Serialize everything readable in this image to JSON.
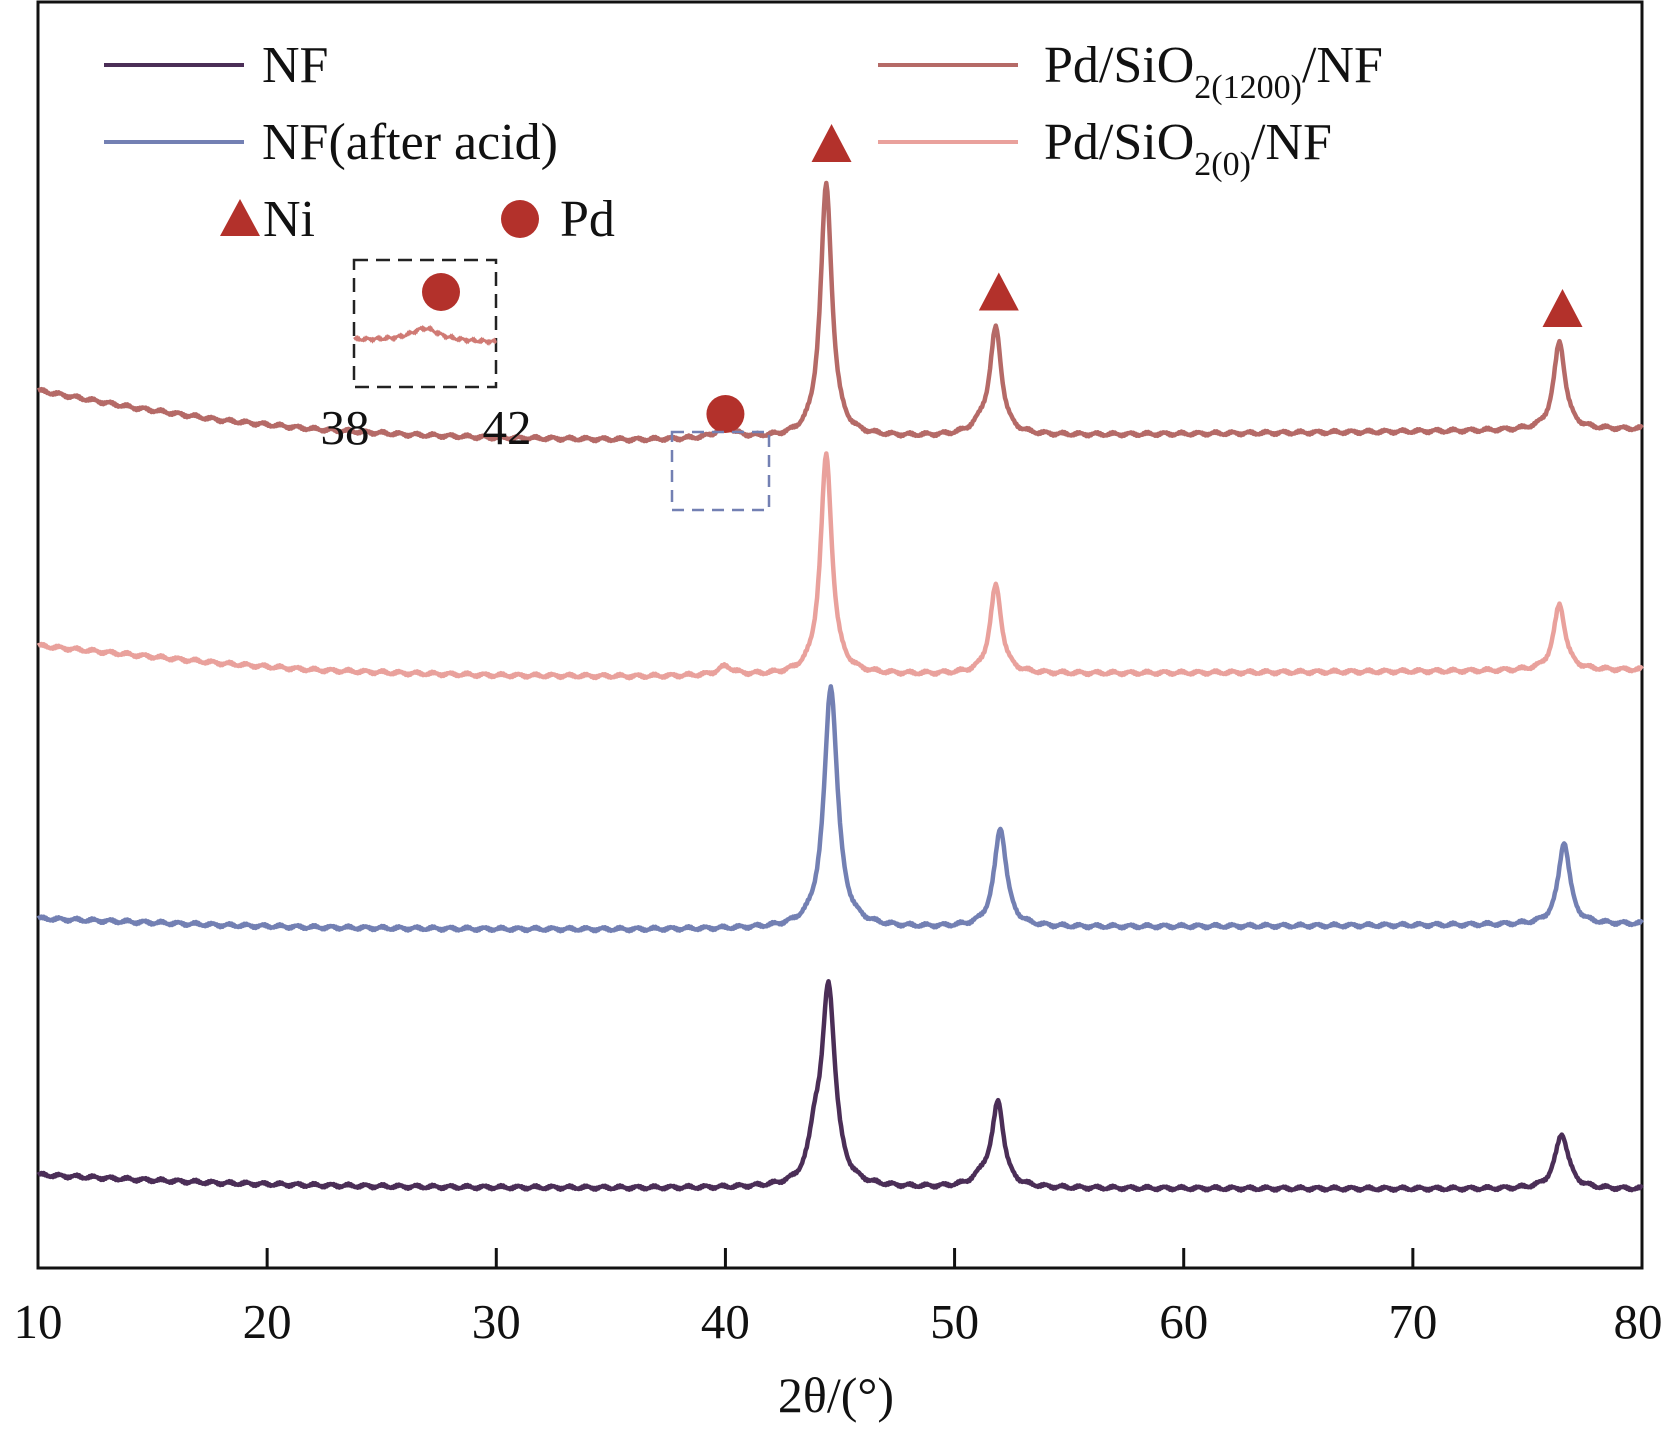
{
  "chart_data": {
    "type": "line",
    "xlabel": "2θ/(°)",
    "xlim": [
      10,
      80
    ],
    "xticks": [
      10,
      20,
      30,
      40,
      50,
      60,
      70,
      80
    ],
    "y_axis": "arbitrary intensity, curves stacked vertically, no tick labels",
    "legend": [
      {
        "name": "NF",
        "color": "#4b2e57"
      },
      {
        "name": "NF(after acid)",
        "color": "#7380b3"
      },
      {
        "name": "Pd/SiO",
        "sub": "2(1200)",
        "suffix": "/NF",
        "color": "#b56a67"
      },
      {
        "name": "Pd/SiO",
        "sub": "2(0)",
        "suffix": "/NF",
        "color": "#e9a19c"
      }
    ],
    "markers": [
      {
        "symbol": "triangle",
        "label": "Ni",
        "color": "#b3312b",
        "positions": [
          44.5,
          51.8,
          76.4
        ]
      },
      {
        "symbol": "circle",
        "label": "Pd",
        "color": "#b3312b",
        "positions": [
          40.0
        ]
      }
    ],
    "inset": {
      "range_label_left": "38",
      "range_label_right": "42",
      "peak_at": 40.0
    },
    "series": [
      {
        "name": "NF",
        "color": "#4b2e57",
        "baseline": 0.0,
        "points": [
          [
            10,
            0.12
          ],
          [
            14,
            0.08
          ],
          [
            18,
            0.045
          ],
          [
            22,
            0.025
          ],
          [
            26,
            0.012
          ],
          [
            30,
            0.005
          ],
          [
            36,
            0.0
          ],
          [
            40,
            0.0
          ],
          [
            43.5,
            0.0
          ],
          [
            80,
            -0.01
          ]
        ],
        "peaks": [
          [
            44.5,
            1.8,
            0.35
          ],
          [
            43.9,
            0.35,
            0.3
          ],
          [
            51.9,
            0.75,
            0.3
          ],
          [
            51.3,
            0.1,
            0.5
          ],
          [
            76.5,
            0.5,
            0.35
          ]
        ]
      },
      {
        "name": "NF(after acid)",
        "color": "#7380b3",
        "baseline": 2.35,
        "points": [
          [
            10,
            0.1
          ],
          [
            14,
            0.07
          ],
          [
            18,
            0.04
          ],
          [
            22,
            0.02
          ],
          [
            26,
            0.01
          ],
          [
            30,
            0.004
          ],
          [
            36,
            0.0
          ],
          [
            80,
            0.05
          ]
        ],
        "peaks": [
          [
            44.6,
            2.2,
            0.35
          ],
          [
            52.0,
            0.9,
            0.32
          ],
          [
            76.6,
            0.75,
            0.3
          ]
        ]
      },
      {
        "name": "Pd/SiO2(0)/NF",
        "color": "#e9a19c",
        "baseline": 4.65,
        "points": [
          [
            10,
            0.28
          ],
          [
            14,
            0.2
          ],
          [
            18,
            0.12
          ],
          [
            22,
            0.06
          ],
          [
            26,
            0.03
          ],
          [
            30,
            0.01
          ],
          [
            36,
            0.0
          ],
          [
            80,
            0.06
          ]
        ],
        "peaks": [
          [
            44.4,
            2.0,
            0.3
          ],
          [
            40.0,
            0.08,
            0.4
          ],
          [
            51.8,
            0.8,
            0.3
          ],
          [
            76.4,
            0.6,
            0.3
          ]
        ]
      },
      {
        "name": "Pd/SiO2(1200)/NF",
        "color": "#b56a67",
        "baseline": 6.8,
        "points": [
          [
            10,
            0.45
          ],
          [
            14,
            0.3
          ],
          [
            18,
            0.18
          ],
          [
            22,
            0.1
          ],
          [
            26,
            0.05
          ],
          [
            30,
            0.02
          ],
          [
            36,
            0.0
          ],
          [
            80,
            0.1
          ]
        ],
        "peaks": [
          [
            44.4,
            2.3,
            0.3
          ],
          [
            40.0,
            0.1,
            0.5
          ],
          [
            51.8,
            0.95,
            0.3
          ],
          [
            51.2,
            0.08,
            0.5
          ],
          [
            76.4,
            0.8,
            0.3
          ]
        ]
      }
    ]
  }
}
